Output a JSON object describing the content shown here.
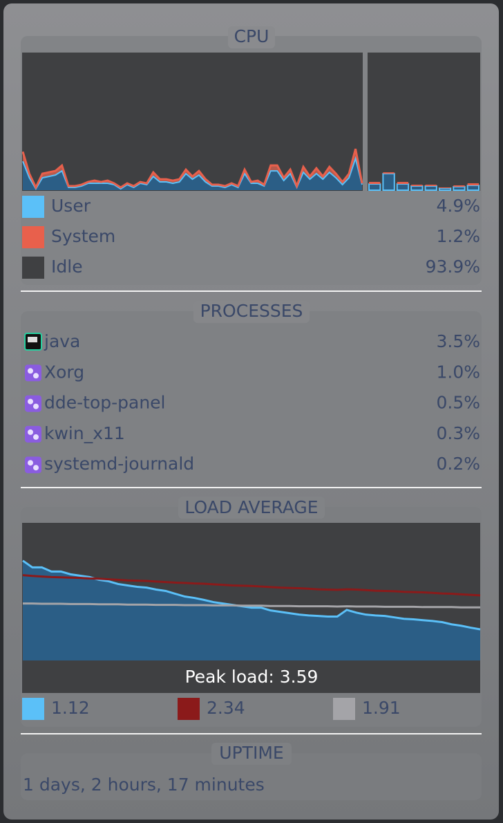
{
  "cpu": {
    "title": "CPU",
    "ylim": [
      0,
      100
    ],
    "history": {
      "series": [
        {
          "name": "User",
          "color": "#5bc0f8",
          "values": [
            21,
            9,
            1,
            9,
            10,
            11,
            14,
            2,
            2,
            3,
            5,
            5,
            5,
            5,
            4,
            1,
            4,
            2,
            5,
            4,
            10,
            6,
            6,
            5,
            6,
            12,
            8,
            11,
            6,
            3,
            3,
            2,
            4,
            2,
            12,
            5,
            5,
            3,
            14,
            14,
            7,
            12,
            2,
            13,
            8,
            12,
            8,
            13,
            9,
            4,
            9,
            23,
            4
          ]
        },
        {
          "name": "System",
          "color": "#e8604c",
          "values": [
            7,
            3,
            1,
            3,
            3,
            3,
            4,
            1,
            1,
            1,
            1,
            2,
            1,
            2,
            1,
            1,
            1,
            1,
            1,
            1,
            3,
            2,
            2,
            2,
            2,
            3,
            2,
            3,
            2,
            1,
            1,
            1,
            1,
            1,
            3,
            1,
            2,
            1,
            4,
            4,
            2,
            3,
            1,
            4,
            2,
            4,
            2,
            4,
            3,
            2,
            3,
            7,
            1
          ]
        }
      ]
    },
    "cores": {
      "user": [
        4.5,
        12,
        4.5,
        3,
        3,
        1.5,
        2.5,
        3.5
      ],
      "system": [
        1.5,
        1,
        1.5,
        1,
        1,
        0.5,
        1,
        1.5
      ]
    },
    "legend": [
      {
        "name": "User",
        "color": "#5bc0f8",
        "value": {
          "value": 4.9,
          "label": "4.9%"
        }
      },
      {
        "name": "System",
        "color": "#e8604c",
        "value": {
          "value": 1.2,
          "label": "1.2%"
        }
      },
      {
        "name": "Idle",
        "color": "#3f4042",
        "value": {
          "value": 93.9,
          "label": "93.9%"
        }
      }
    ]
  },
  "processes": {
    "title": "PROCESSES",
    "rows": [
      {
        "name": "java",
        "cpu": {
          "value": 3.5,
          "label": "3.5%"
        }
      },
      {
        "name": "Xorg",
        "cpu": {
          "value": 1.0,
          "label": "1.0%"
        }
      },
      {
        "name": "dde-top-panel",
        "cpu": {
          "value": 0.5,
          "label": "0.5%"
        }
      },
      {
        "name": "kwin_x11",
        "cpu": {
          "value": 0.3,
          "label": "0.3%"
        }
      },
      {
        "name": "systemd-journald",
        "cpu": {
          "value": 0.2,
          "label": "0.2%"
        }
      }
    ]
  },
  "load": {
    "title": "LOAD AVERAGE",
    "peak": "Peak load: 3.59",
    "ylim": [
      0,
      4.95
    ],
    "series": [
      {
        "color": "#5bc0f8",
        "fill": "#2b5e86",
        "values": [
          3.59,
          3.35,
          3.35,
          3.2,
          3.2,
          3.1,
          3.05,
          3.0,
          2.9,
          2.85,
          2.75,
          2.7,
          2.65,
          2.62,
          2.55,
          2.5,
          2.4,
          2.3,
          2.25,
          2.18,
          2.1,
          2.05,
          2.0,
          1.95,
          1.9,
          1.9,
          1.8,
          1.75,
          1.7,
          1.65,
          1.62,
          1.6,
          1.58,
          1.58,
          1.82,
          1.72,
          1.65,
          1.62,
          1.6,
          1.55,
          1.5,
          1.48,
          1.45,
          1.42,
          1.38,
          1.3,
          1.25,
          1.18,
          1.12
        ]
      },
      {
        "color": "#8b1a1a",
        "values": [
          3.07,
          3.04,
          3.02,
          3.0,
          2.99,
          2.98,
          2.97,
          2.95,
          2.94,
          2.92,
          2.9,
          2.88,
          2.87,
          2.86,
          2.84,
          2.82,
          2.8,
          2.79,
          2.77,
          2.76,
          2.74,
          2.72,
          2.7,
          2.69,
          2.68,
          2.66,
          2.64,
          2.62,
          2.61,
          2.6,
          2.58,
          2.56,
          2.55,
          2.54,
          2.56,
          2.55,
          2.53,
          2.51,
          2.5,
          2.49,
          2.47,
          2.46,
          2.45,
          2.43,
          2.41,
          2.4,
          2.38,
          2.36,
          2.34
        ]
      },
      {
        "color": "#a4a4a8",
        "values": [
          2.05,
          2.05,
          2.04,
          2.04,
          2.04,
          2.03,
          2.03,
          2.03,
          2.02,
          2.02,
          2.02,
          2.01,
          2.01,
          2.01,
          2.0,
          2.0,
          2.0,
          1.99,
          1.99,
          1.99,
          1.98,
          1.98,
          1.98,
          1.97,
          1.97,
          1.97,
          1.96,
          1.96,
          1.96,
          1.95,
          1.95,
          1.95,
          1.95,
          1.94,
          1.95,
          1.94,
          1.94,
          1.94,
          1.93,
          1.93,
          1.93,
          1.93,
          1.92,
          1.92,
          1.92,
          1.92,
          1.91,
          1.91,
          1.91
        ]
      }
    ],
    "legend": [
      {
        "color": "#5bc0f8",
        "value": 1.12
      },
      {
        "color": "#8b1a1a",
        "value": 2.34
      },
      {
        "color": "#a4a4a8",
        "value": 1.91
      }
    ]
  },
  "uptime": {
    "title": "UPTIME",
    "text": "1 days, 2 hours, 17 minutes"
  }
}
